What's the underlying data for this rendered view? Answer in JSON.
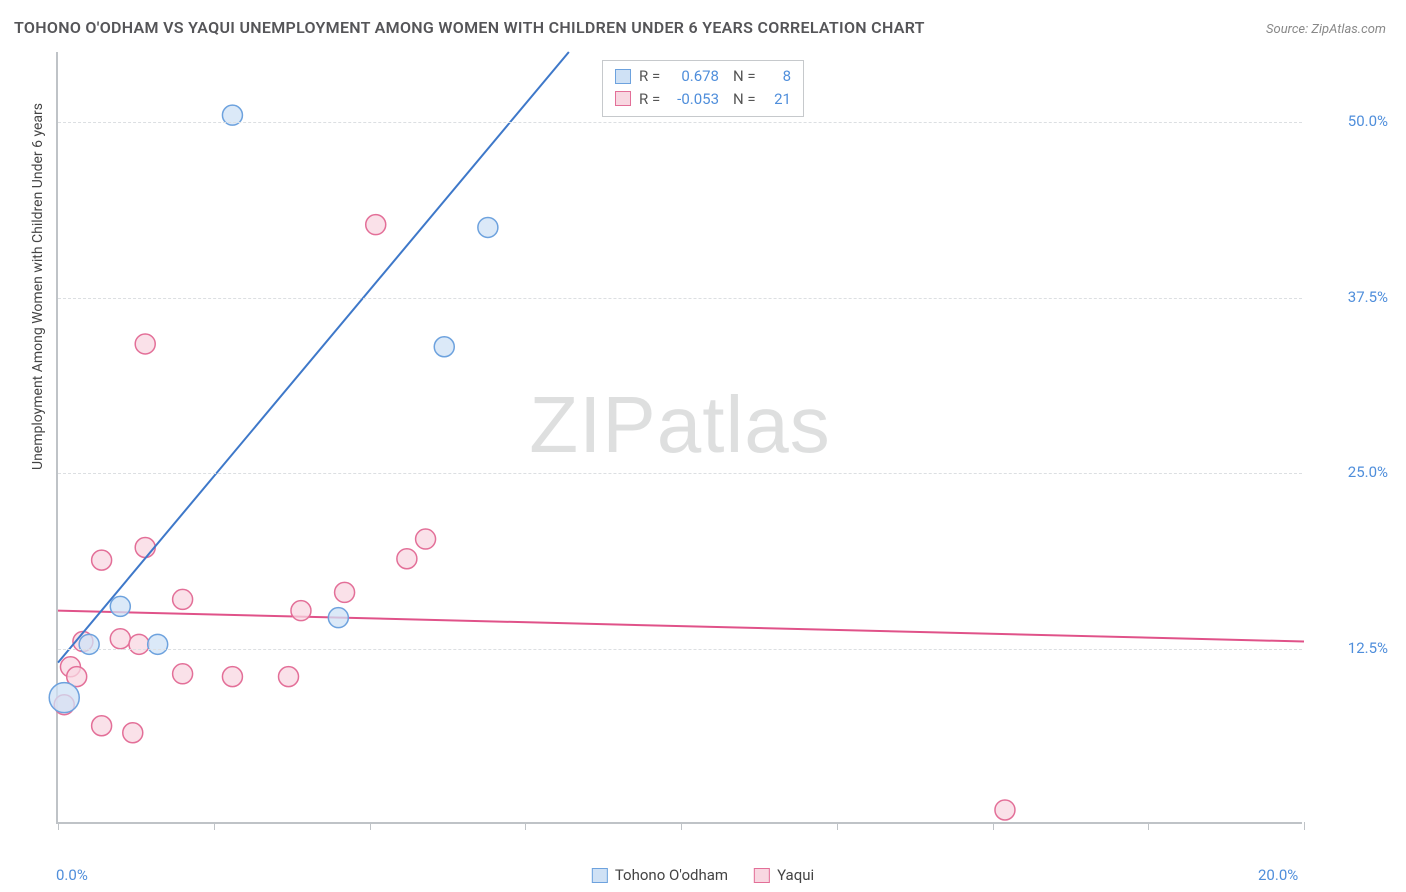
{
  "title": "TOHONO O'ODHAM VS YAQUI UNEMPLOYMENT AMONG WOMEN WITH CHILDREN UNDER 6 YEARS CORRELATION CHART",
  "source": "Source: ZipAtlas.com",
  "ylabel": "Unemployment Among Women with Children Under 6 years",
  "watermark_bold": "ZIP",
  "watermark_thin": "atlas",
  "chart": {
    "type": "scatter",
    "xlim": [
      0,
      20
    ],
    "ylim": [
      0,
      55
    ],
    "x_ticks": [
      0,
      2.5,
      5,
      7.5,
      10,
      12.5,
      15,
      17.5,
      20
    ],
    "y_gridlines": [
      12.5,
      25.0,
      37.5,
      50.0
    ],
    "x_tick_labels": {
      "0": "0.0%",
      "20": "20.0%"
    },
    "y_tick_labels": [
      "12.5%",
      "25.0%",
      "37.5%",
      "50.0%"
    ],
    "background_color": "#ffffff",
    "grid_color": "#dcdfe2",
    "axis_color": "#bfc3c7",
    "tick_label_color": "#4f8edb",
    "series": [
      {
        "name": "Tohono O'odham",
        "marker_fill": "#cfe1f5",
        "marker_stroke": "#6da2de",
        "line_color": "#3e78c9",
        "line_width": 2,
        "marker_radius": 10,
        "R": "0.678",
        "N": "8",
        "points": [
          {
            "x": 2.8,
            "y": 50.5
          },
          {
            "x": 6.9,
            "y": 42.5
          },
          {
            "x": 6.2,
            "y": 34.0
          },
          {
            "x": 1.0,
            "y": 15.5
          },
          {
            "x": 4.5,
            "y": 14.7
          },
          {
            "x": 1.6,
            "y": 12.8
          },
          {
            "x": 0.5,
            "y": 12.8
          },
          {
            "x": 0.1,
            "y": 9.0,
            "r": 15
          }
        ],
        "regression": {
          "x1": 0,
          "y1": 11.5,
          "x2": 8.2,
          "y2": 55
        }
      },
      {
        "name": "Yaqui",
        "marker_fill": "#f8d7e1",
        "marker_stroke": "#e36f98",
        "line_color": "#e05289",
        "line_width": 2,
        "marker_radius": 10,
        "R": "-0.053",
        "N": "21",
        "points": [
          {
            "x": 5.1,
            "y": 42.7
          },
          {
            "x": 1.4,
            "y": 34.2
          },
          {
            "x": 1.4,
            "y": 19.7
          },
          {
            "x": 0.7,
            "y": 18.8
          },
          {
            "x": 5.9,
            "y": 20.3
          },
          {
            "x": 5.6,
            "y": 18.9
          },
          {
            "x": 2.0,
            "y": 16.0
          },
          {
            "x": 4.6,
            "y": 16.5
          },
          {
            "x": 3.9,
            "y": 15.2
          },
          {
            "x": 0.4,
            "y": 13.0
          },
          {
            "x": 1.0,
            "y": 13.2
          },
          {
            "x": 1.3,
            "y": 12.8
          },
          {
            "x": 0.2,
            "y": 11.2
          },
          {
            "x": 0.3,
            "y": 10.5
          },
          {
            "x": 2.0,
            "y": 10.7
          },
          {
            "x": 2.8,
            "y": 10.5
          },
          {
            "x": 3.7,
            "y": 10.5
          },
          {
            "x": 0.1,
            "y": 8.5
          },
          {
            "x": 0.7,
            "y": 7.0
          },
          {
            "x": 1.2,
            "y": 6.5
          },
          {
            "x": 15.2,
            "y": 1.0
          }
        ],
        "regression": {
          "x1": 0,
          "y1": 15.2,
          "x2": 20,
          "y2": 13.0
        }
      }
    ]
  },
  "legend_bottom": [
    {
      "label": "Tohono O'odham",
      "fill": "#cfe1f5",
      "stroke": "#6da2de"
    },
    {
      "label": "Yaqui",
      "fill": "#f8d7e1",
      "stroke": "#e36f98"
    }
  ]
}
